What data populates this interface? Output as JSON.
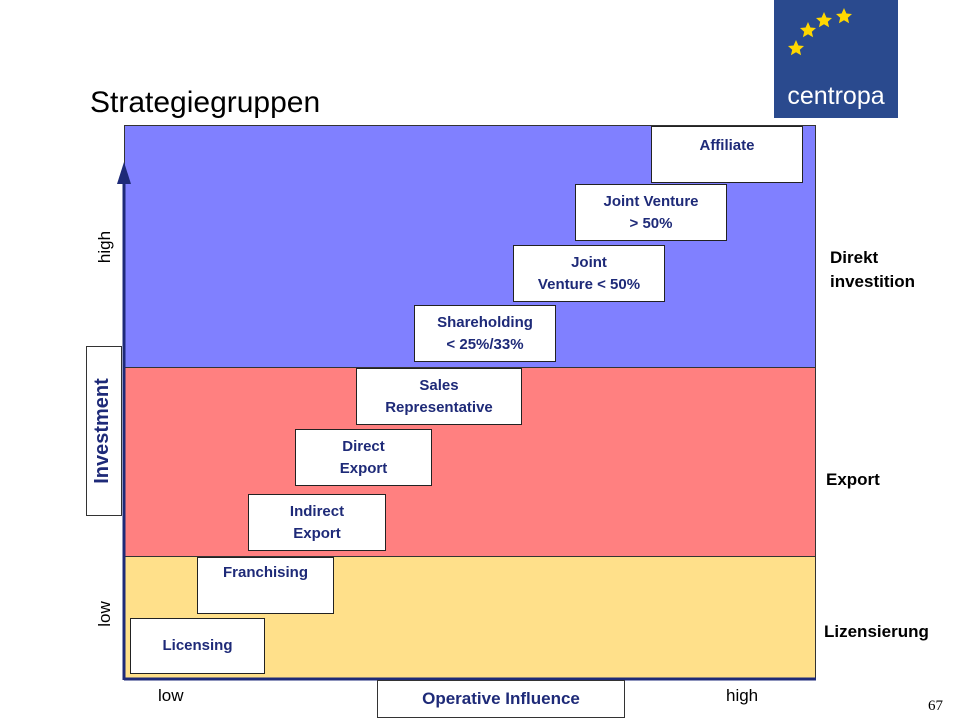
{
  "title": "Strategiegruppen",
  "logo": {
    "text": "centropa",
    "background": "#2a4a8e",
    "star_color": "#ffd700"
  },
  "bands": {
    "direct": {
      "label": "Direkt investition",
      "color": "#8080ff"
    },
    "export": {
      "label": "Export",
      "color": "#ff8080"
    },
    "license": {
      "label": "Lizensierung",
      "color": "#ffe08a"
    }
  },
  "boxes": {
    "affiliate": "Affiliate",
    "jv_over": [
      "Joint Venture",
      "> 50%"
    ],
    "jv_under": [
      "Joint",
      "Venture < 50%"
    ],
    "shareholding": [
      "Shareholding",
      "< 25%/33%"
    ],
    "sales_rep": [
      "Sales",
      "Representative"
    ],
    "direct_export": [
      "Direct",
      "Export"
    ],
    "indirect_export": [
      "Indirect",
      "Export"
    ],
    "franchising": "Franchising",
    "licensing": "Licensing"
  },
  "y_axis": {
    "title": "Investment",
    "low": "low",
    "high": "high"
  },
  "x_axis": {
    "title": "Operative Influence",
    "low": "low",
    "high": "high"
  },
  "page_number": "67"
}
